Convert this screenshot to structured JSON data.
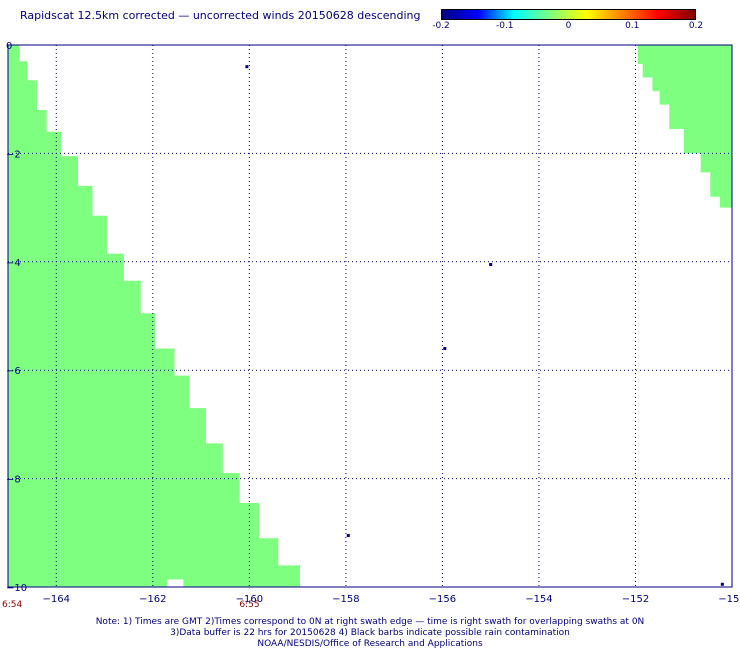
{
  "title": "Rapidscat 12.5km corrected — uncorrected winds 20150628 descending",
  "colorbar": {
    "ticks": [
      "-0.2",
      "-0.1",
      "0",
      "0.1",
      "0.2"
    ],
    "tick_values": [
      -0.2,
      -0.1,
      0,
      0.1,
      0.2
    ],
    "colors": [
      "#000080",
      "#0000ff",
      "#00ffff",
      "#7fff7f",
      "#ffff00",
      "#ff8000",
      "#ff0000",
      "#800000"
    ]
  },
  "chart_data": {
    "type": "heatmap",
    "title": "Rapidscat 12.5km corrected — uncorrected winds 20150628 descending",
    "xlim": [
      -165,
      -150
    ],
    "ylim": [
      -10,
      0
    ],
    "x_ticks": [
      -164,
      -162,
      -160,
      -158,
      -156,
      -154,
      -152,
      -150
    ],
    "x_tick_labels": [
      "−164",
      "−162",
      "−160",
      "−158",
      "−156",
      "−154",
      "−152",
      "−150"
    ],
    "y_ticks": [
      0,
      -2,
      -4,
      -6,
      -8,
      -10
    ],
    "y_tick_labels": [
      "0",
      "−2",
      "−4",
      "−6",
      "−8",
      "−10"
    ],
    "grid": true,
    "swath_fill_color": "#7fff7f",
    "swaths": [
      {
        "side": "left",
        "value": 0,
        "edge": [
          [
            -164.76,
            0
          ],
          [
            -164.6,
            -0.3
          ],
          [
            -164.4,
            -0.65
          ],
          [
            -164.2,
            -1.2
          ],
          [
            -163.9,
            -1.6
          ],
          [
            -163.55,
            -2.05
          ],
          [
            -163.25,
            -2.6
          ],
          [
            -162.95,
            -3.15
          ],
          [
            -162.6,
            -3.85
          ],
          [
            -162.25,
            -4.35
          ],
          [
            -161.95,
            -4.95
          ],
          [
            -161.55,
            -5.6
          ],
          [
            -161.25,
            -6.1
          ],
          [
            -160.9,
            -6.7
          ],
          [
            -160.55,
            -7.35
          ],
          [
            -160.2,
            -7.9
          ],
          [
            -159.8,
            -8.45
          ],
          [
            -159.4,
            -9.1
          ],
          [
            -158.95,
            -9.6
          ],
          [
            -158.55,
            -10
          ]
        ]
      },
      {
        "side": "right",
        "value": 0,
        "edge": [
          [
            -151.95,
            0
          ],
          [
            -151.85,
            -0.35
          ],
          [
            -151.65,
            -0.6
          ],
          [
            -151.5,
            -0.85
          ],
          [
            -151.3,
            -1.1
          ],
          [
            -151.0,
            -1.55
          ],
          [
            -150.65,
            -2.0
          ],
          [
            -150.45,
            -2.35
          ],
          [
            -150.25,
            -2.8
          ],
          [
            -150.05,
            -3.0
          ]
        ]
      }
    ],
    "scattered_points": [
      [
        -160.05,
        -0.4
      ],
      [
        -155.0,
        -4.05
      ],
      [
        -155.95,
        -5.6
      ],
      [
        -157.95,
        -9.05
      ],
      [
        -150.2,
        -9.95
      ]
    ],
    "pass_times": [
      {
        "lon": -165,
        "label": "6:54"
      },
      {
        "lon": -160,
        "label": "6:55"
      }
    ]
  },
  "notes": {
    "line1": "Note: 1) Times are GMT 2)Times correspond to 0N at right swath edge — time is right swath for overlapping swaths at 0N",
    "line2": "3)Data buffer is 22 hrs for 20150628 4) Black barbs indicate possible rain contamination",
    "line3": "NOAA/NESDIS/Office of Research and Applications"
  }
}
